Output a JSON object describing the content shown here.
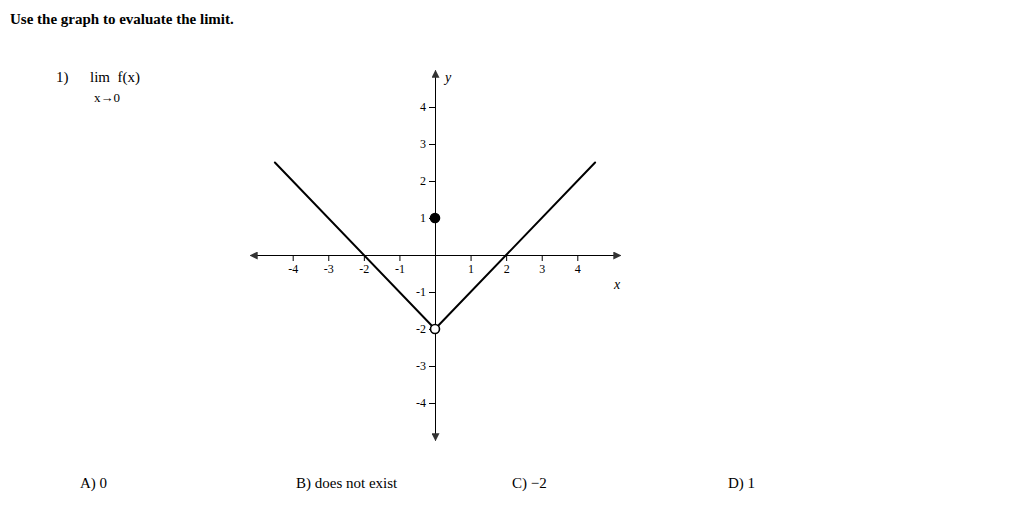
{
  "chart_data": {
    "type": "line",
    "title": "Use the graph to evaluate the limit.",
    "x_label": "x",
    "y_label": "y",
    "annotations": [
      "1)",
      "lim  f(x)",
      "x→0",
      "A) 0",
      "B) does not exist",
      "C) −2",
      "D) 1"
    ],
    "xlim": [
      -5.2,
      5.2
    ],
    "ylim": [
      -5.0,
      5.0
    ],
    "xticks": [
      -4,
      -3,
      -2,
      -1,
      1,
      2,
      3,
      4
    ],
    "yticks": [
      -4,
      -3,
      -2,
      -1,
      1,
      2,
      3,
      4
    ],
    "grid": false,
    "series": [
      {
        "type": "line",
        "color": "#000000",
        "x": [
          -4.5,
          0
        ],
        "values": [
          2.5,
          -2
        ]
      },
      {
        "type": "line",
        "color": "#000000",
        "x": [
          0,
          4.5
        ],
        "values": [
          -2,
          2.5
        ]
      },
      {
        "type": "scatter",
        "marker": "open",
        "color": "#000000",
        "x": [
          0
        ],
        "values": [
          -2
        ]
      },
      {
        "type": "scatter",
        "marker": "filled",
        "color": "#000000",
        "x": [
          0
        ],
        "values": [
          1
        ]
      }
    ]
  }
}
